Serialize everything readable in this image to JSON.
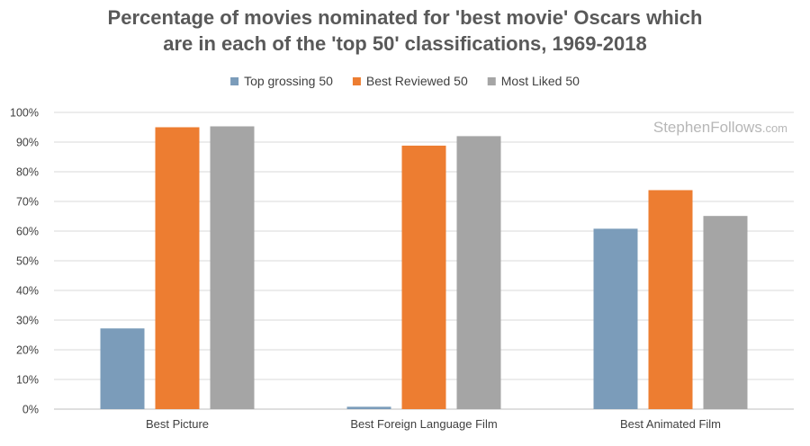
{
  "chart_data": {
    "type": "bar",
    "title": [
      "Percentage of movies nominated for 'best movie' Oscars which",
      "are in each of the 'top 50' classifications, 1969-2018"
    ],
    "categories": [
      "Best Picture",
      "Best Foreign Language Film",
      "Best Animated Film"
    ],
    "series": [
      {
        "name": "Top grossing 50",
        "color": "#7b9cba",
        "values": [
          27.2,
          0.8,
          60.8
        ]
      },
      {
        "name": "Best Reviewed 50",
        "color": "#ed7d31",
        "values": [
          95.0,
          88.8,
          73.8
        ]
      },
      {
        "name": "Most Liked 50",
        "color": "#a5a5a5",
        "values": [
          95.3,
          92.0,
          65.1
        ]
      }
    ],
    "ylim": [
      0,
      100
    ],
    "yticks": [
      "0%",
      "10%",
      "20%",
      "30%",
      "40%",
      "50%",
      "60%",
      "70%",
      "80%",
      "90%",
      "100%"
    ],
    "grid": true,
    "legend": "top-center",
    "xlabel": "",
    "ylabel": ""
  },
  "watermark": {
    "main": "StephenFollows",
    "domain": ".com"
  }
}
